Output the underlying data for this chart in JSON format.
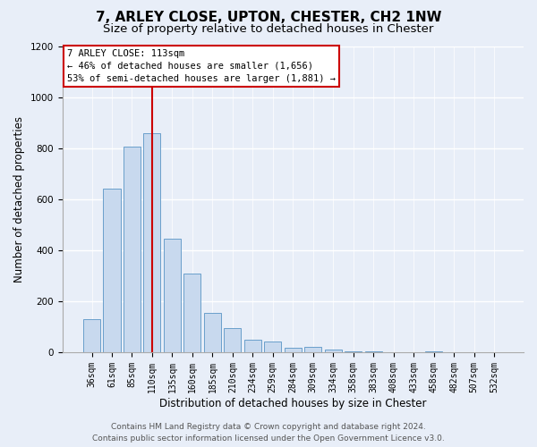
{
  "title": "7, ARLEY CLOSE, UPTON, CHESTER, CH2 1NW",
  "subtitle": "Size of property relative to detached houses in Chester",
  "xlabel": "Distribution of detached houses by size in Chester",
  "ylabel": "Number of detached properties",
  "bar_labels": [
    "36sqm",
    "61sqm",
    "85sqm",
    "110sqm",
    "135sqm",
    "160sqm",
    "185sqm",
    "210sqm",
    "234sqm",
    "259sqm",
    "284sqm",
    "309sqm",
    "334sqm",
    "358sqm",
    "383sqm",
    "408sqm",
    "433sqm",
    "458sqm",
    "482sqm",
    "507sqm",
    "532sqm"
  ],
  "bar_values": [
    130,
    640,
    805,
    860,
    445,
    308,
    155,
    95,
    50,
    42,
    17,
    22,
    12,
    5,
    2,
    0,
    0,
    5,
    0,
    0,
    0
  ],
  "bar_color": "#c8d9ee",
  "bar_edge_color": "#6a9fcb",
  "ylim": [
    0,
    1200
  ],
  "yticks": [
    0,
    200,
    400,
    600,
    800,
    1000,
    1200
  ],
  "vline_bar_index": 3,
  "vline_color": "#cc0000",
  "annotation_title": "7 ARLEY CLOSE: 113sqm",
  "annotation_line1": "← 46% of detached houses are smaller (1,656)",
  "annotation_line2": "53% of semi-detached houses are larger (1,881) →",
  "annotation_box_facecolor": "#ffffff",
  "annotation_box_edgecolor": "#cc0000",
  "footer_line1": "Contains HM Land Registry data © Crown copyright and database right 2024.",
  "footer_line2": "Contains public sector information licensed under the Open Government Licence v3.0.",
  "bg_color": "#e8eef8",
  "plot_bg_color": "#e8eef8",
  "grid_color": "#ffffff",
  "title_fontsize": 11,
  "subtitle_fontsize": 9.5,
  "axis_label_fontsize": 8.5,
  "tick_fontsize": 7,
  "annotation_fontsize": 7.5,
  "footer_fontsize": 6.5
}
